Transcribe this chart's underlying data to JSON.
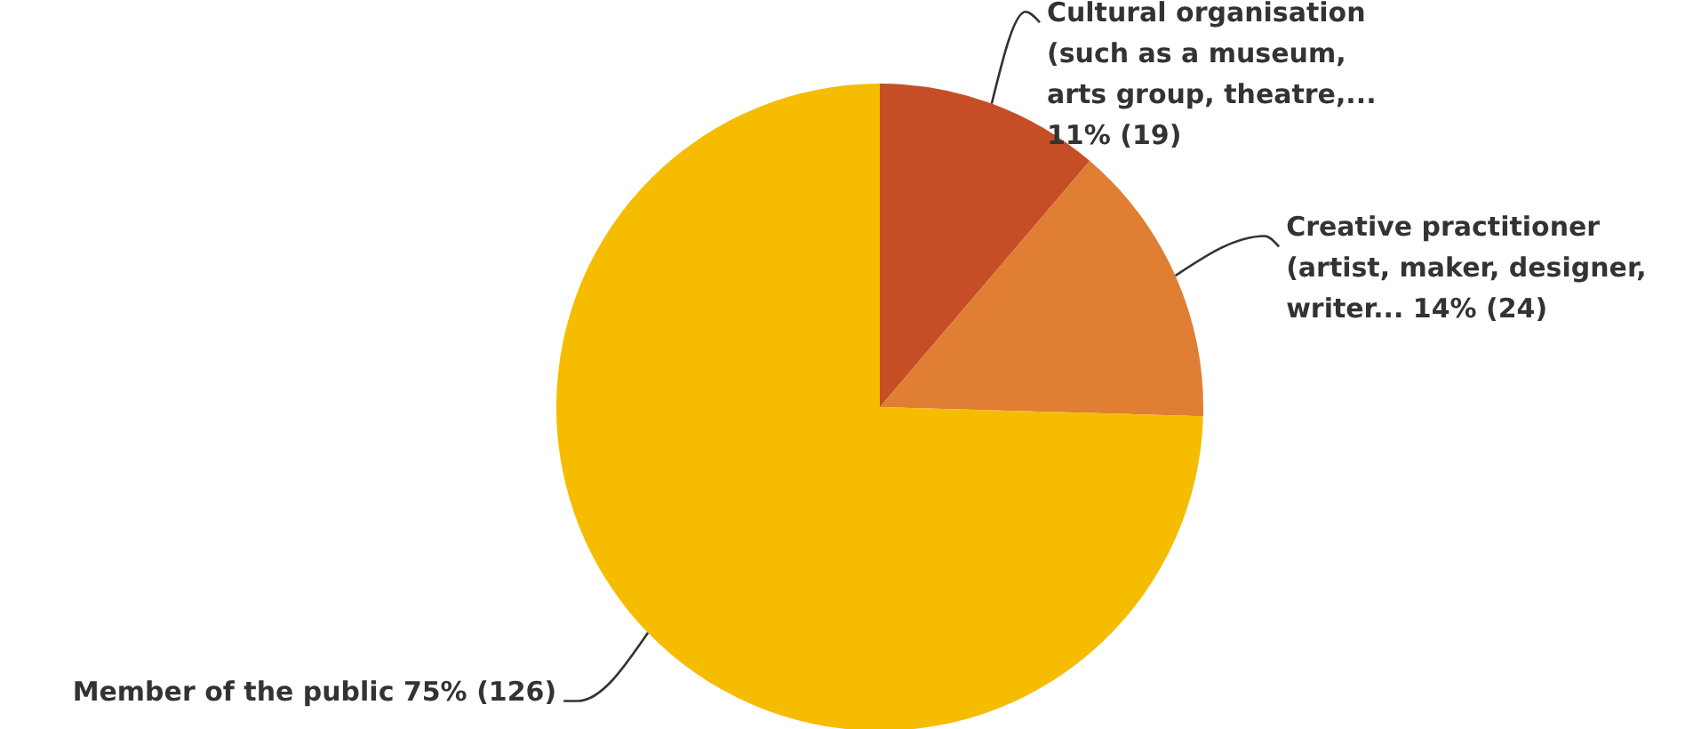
{
  "chart_data": {
    "type": "pie",
    "categories": [
      "Cultural organisation\n(such as a museum,\narts group, theatre,...",
      "Creative practitioner\n(artist, maker, designer,\nwriter...",
      "Member of the public"
    ],
    "values": [
      19,
      24,
      126
    ],
    "value_labels": [
      "11% (19)",
      "14% (24)",
      "75% (126)"
    ],
    "colors": [
      "#c64e27",
      "#e07e34",
      "#f6bc00"
    ]
  }
}
